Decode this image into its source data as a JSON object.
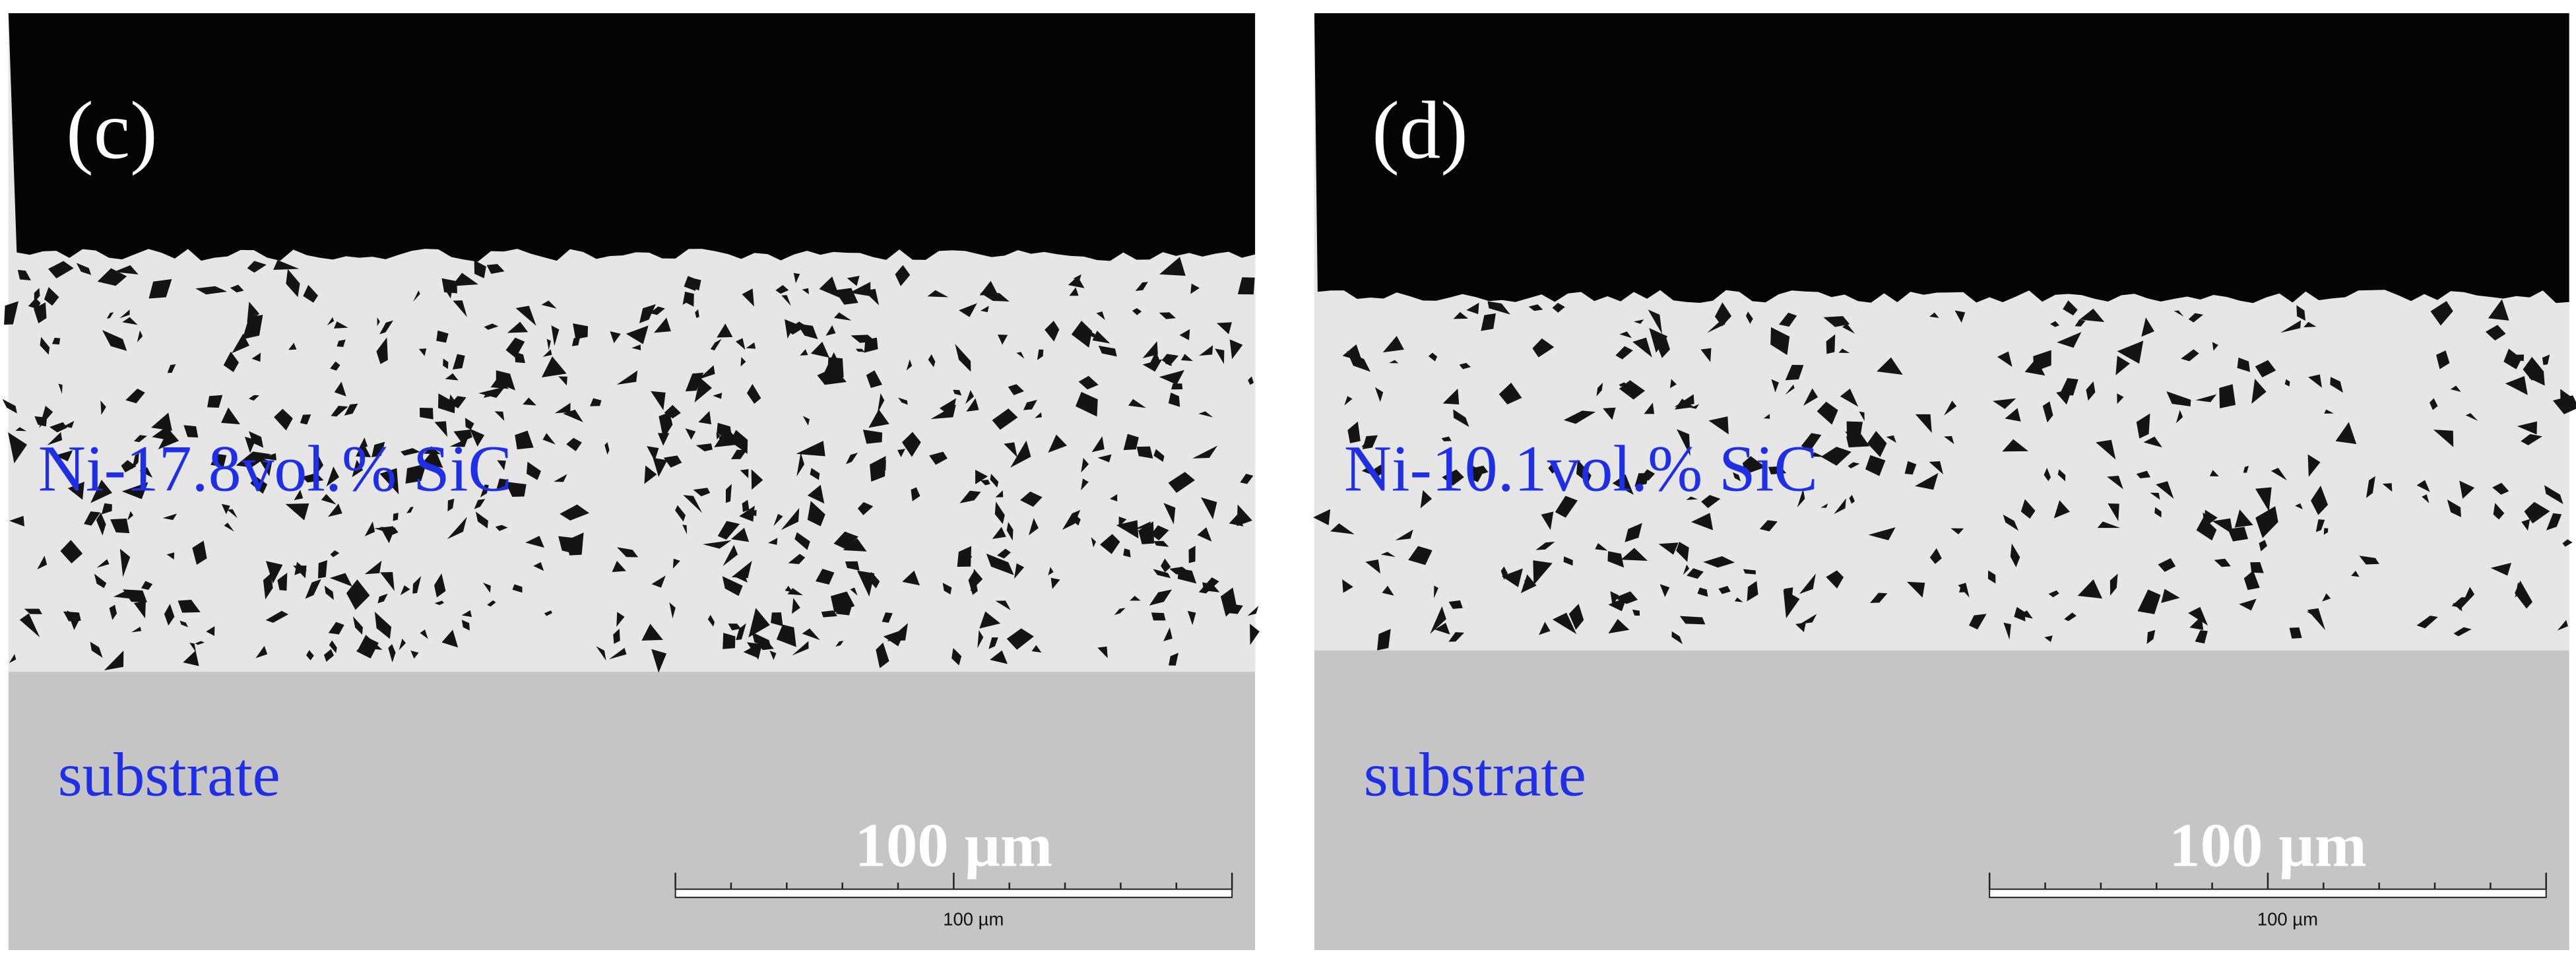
{
  "panels": [
    {
      "label": "(c)",
      "coating": "Ni-17.8vol.% SiC",
      "substrate": "substrate",
      "scale_label": "100 µm",
      "scale_caption": "100 µm"
    },
    {
      "label": "(d)",
      "coating": "Ni-10.1vol.% SiC",
      "substrate": "substrate",
      "scale_label": "100 µm",
      "scale_caption": "100 µm"
    }
  ]
}
